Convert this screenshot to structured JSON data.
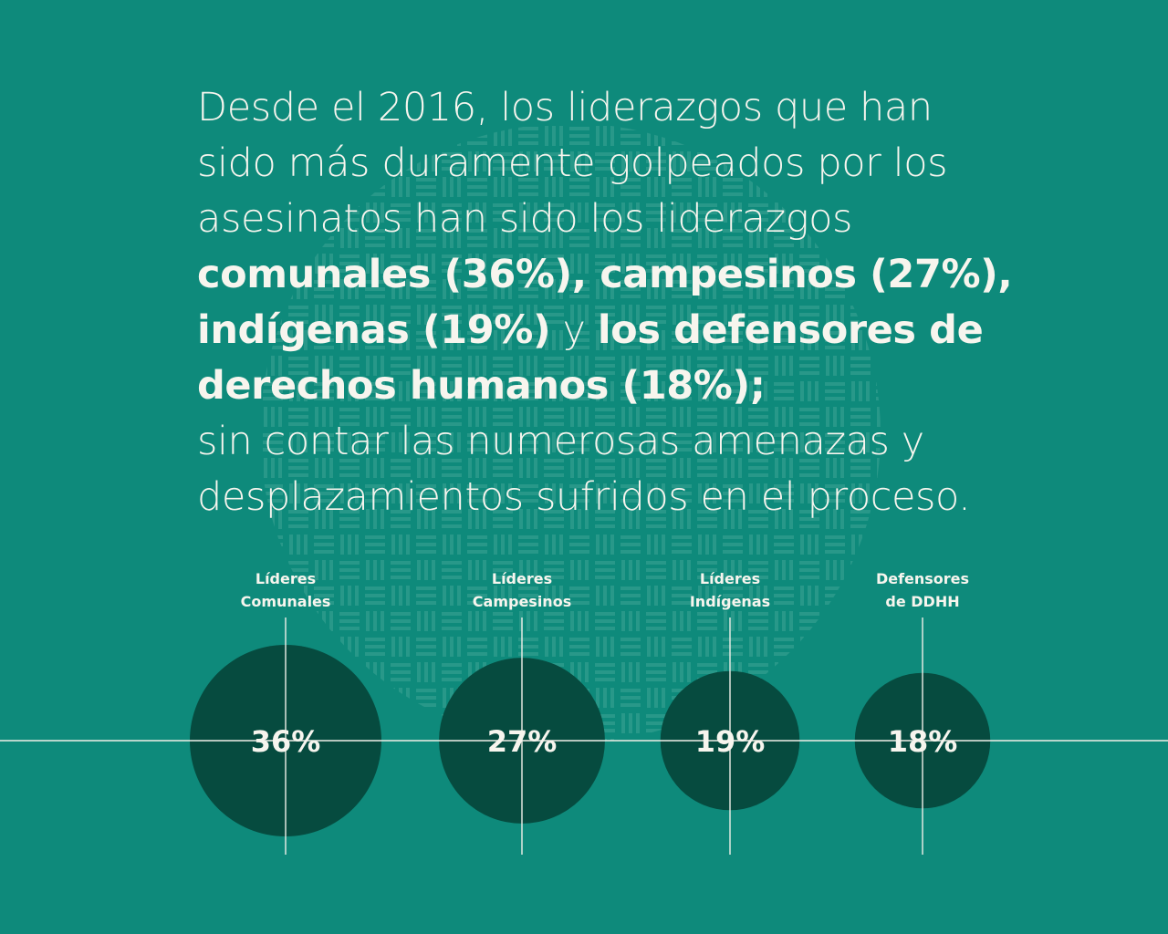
{
  "colors": {
    "background": "#0e8a7b",
    "bubble": "#064b3f",
    "text": "#f7f5ee",
    "line": "#f1efe8",
    "pattern": "#5fb7a7"
  },
  "headline": {
    "line1": "Desde el 2016, los liderazgos que han",
    "line2": "sido más duramente golpeados por los",
    "line3": "asesinatos han sido los liderazgos",
    "line4_bold": "comunales (36%), campesinos (27%),",
    "line5_bold_a": "indígenas (19%)",
    "line5_regular": " y ",
    "line5_bold_b": "los defensores de",
    "line6_bold": "derechos humanos (18%);",
    "line7": "sin contar las numerosas amenazas y",
    "line8": "desplazamientos sufridos en el proceso."
  },
  "chart_data": {
    "type": "bubble",
    "title": "",
    "xlabel": "",
    "ylabel": "",
    "unit": "%",
    "categories": [
      [
        "Líderes",
        "Comunales"
      ],
      [
        "Líderes",
        "Campesinos"
      ],
      [
        "Líderes",
        "Indígenas"
      ],
      [
        "Defensores",
        "de DDHH"
      ]
    ],
    "values": [
      36,
      27,
      19,
      18
    ],
    "value_labels": [
      "36%",
      "27%",
      "19%",
      "18%"
    ]
  }
}
